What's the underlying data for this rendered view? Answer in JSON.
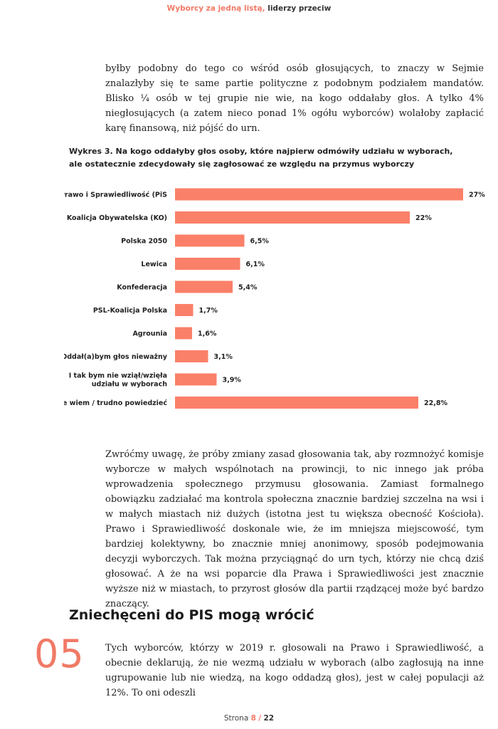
{
  "header": {
    "accent": "Wyborcy za jedną listą,",
    "rest": "liderzy przeciw"
  },
  "paragraph1": "byłby podobny do tego co wśród osób głosujących, to znaczy w Sejmie znalazłyby się te same partie polityczne z podobnym podziałem mandatów. Blisko ¼ osób w tej grupie nie wie, na kogo oddałaby głos. A tylko 4% niegłosujących (a zatem nieco ponad 1% ogółu wyborców) wolałoby zapłacić karę finansową, niż pójść do urn.",
  "chart_data": {
    "type": "bar",
    "orientation": "horizontal",
    "title_line1": "Wykres 3. Na kogo oddałyby głos osoby, które najpierw odmówiły udziału w wyborach,",
    "title_line2": "ale ostatecznie zdecydowały się zagłosować ze względu na przymus wyborczy",
    "categories": [
      [
        "Prawo i Sprawiedliwość (PiS"
      ],
      [
        "Koalicja Obywatelska (KO)"
      ],
      [
        "Polska 2050"
      ],
      [
        "Lewica"
      ],
      [
        "Konfederacja"
      ],
      [
        "PSL-Koalicja Polska"
      ],
      [
        "Agrounia"
      ],
      [
        "Oddał(a)bym głos nieważny"
      ],
      [
        "I tak bym nie wziął/wzięła",
        "udziału w wyborach"
      ],
      [
        "Nie wiem / trudno powiedzieć"
      ]
    ],
    "values": [
      27,
      22,
      6.5,
      6.1,
      5.4,
      1.7,
      1.6,
      3.1,
      3.9,
      22.8
    ],
    "value_labels": [
      "27%",
      "22%",
      "6,5%",
      "6,1%",
      "5,4%",
      "1,7%",
      "1,6%",
      "3,1%",
      "3,9%",
      "22,8%"
    ],
    "xlim": [
      0,
      27
    ],
    "bar_color": "#fa8069",
    "grid": false,
    "legend": "none"
  },
  "paragraph2": "Zwróćmy uwagę, że próby zmiany zasad głosowania tak, aby rozmnożyć komisje wyborcze w małych wspólnotach na prowincji, to nic innego jak próba wprowadzenia społecznego przymusu głosowania. Zamiast formalnego obowiązku zadziałać ma kontrola społeczna znacznie bardziej szczelna na wsi i w małych miastach niż dużych (istotna jest tu większa obecność Kościoła). Prawo i Sprawiedliwość doskonale wie, że im mniejsza miejscowość, tym bardziej kolektywny, bo znacznie mniej anonimowy, sposób podejmowania decyzji wyborczych. Tak można przyciągnąć do urn tych, którzy nie chcą dziś głosować. A że na wsi poparcie dla Prawa i Sprawiedliwości jest znacznie wyższe niż w miastach, to przyrost głosów dla partii rządzącej może być bardzo znaczący.",
  "section": {
    "title": "Zniechęceni do PIS mogą wrócić",
    "number": "05"
  },
  "paragraph3": "Tych wyborców, którzy w 2019 r. głosowali na Prawo i Sprawiedliwość, a obecnie deklarują, że nie wezmą udziału w wyborach (albo zagłosują na inne ugrupowanie lub nie wiedzą, na kogo oddadzą głos), jest w całej populacji aż 12%. To oni odeszli",
  "footer": {
    "label": "Strona",
    "page": "8",
    "separator": "/",
    "total": "22"
  }
}
